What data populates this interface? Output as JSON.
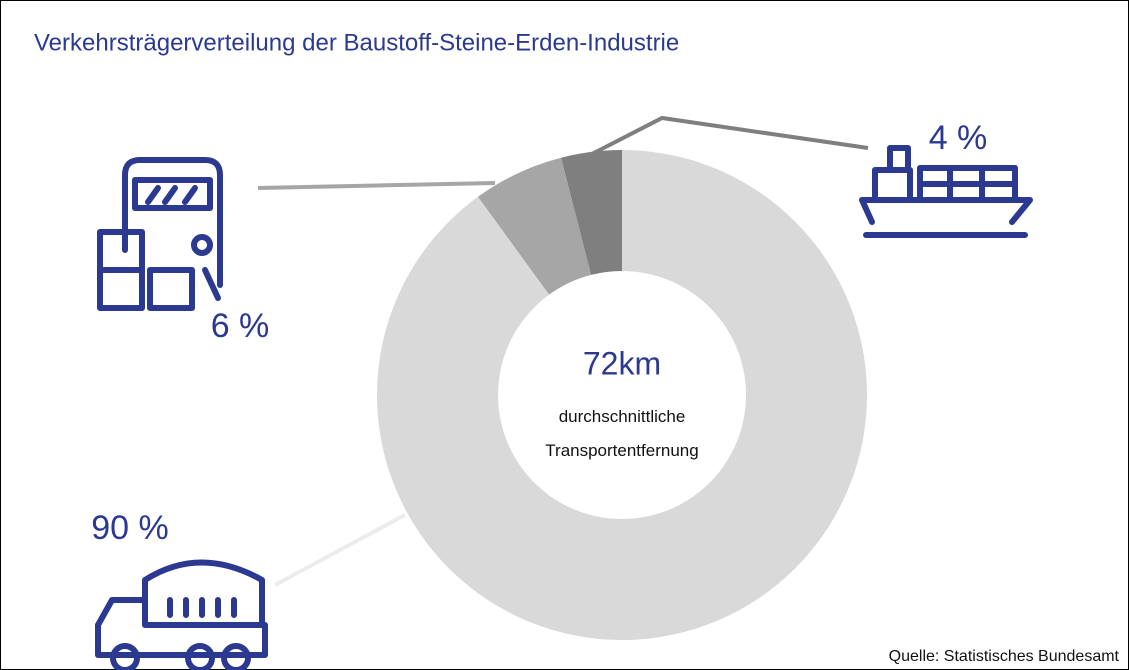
{
  "chart_data": {
    "type": "donut",
    "title": "Verkehrsträgerverteilung der Baustoff-Steine-Erden-Industrie",
    "values": [
      90,
      6,
      4
    ],
    "value_labels": [
      "90 %",
      "6 %",
      "4 %"
    ],
    "colors": [
      "#d9d9d9",
      "#a6a6a6",
      "#7f7f7f"
    ],
    "center_value": "72km",
    "center_label": "durchschnittliche Transportentfernung",
    "source": "Quelle: Statistisches Bundesamt"
  }
}
